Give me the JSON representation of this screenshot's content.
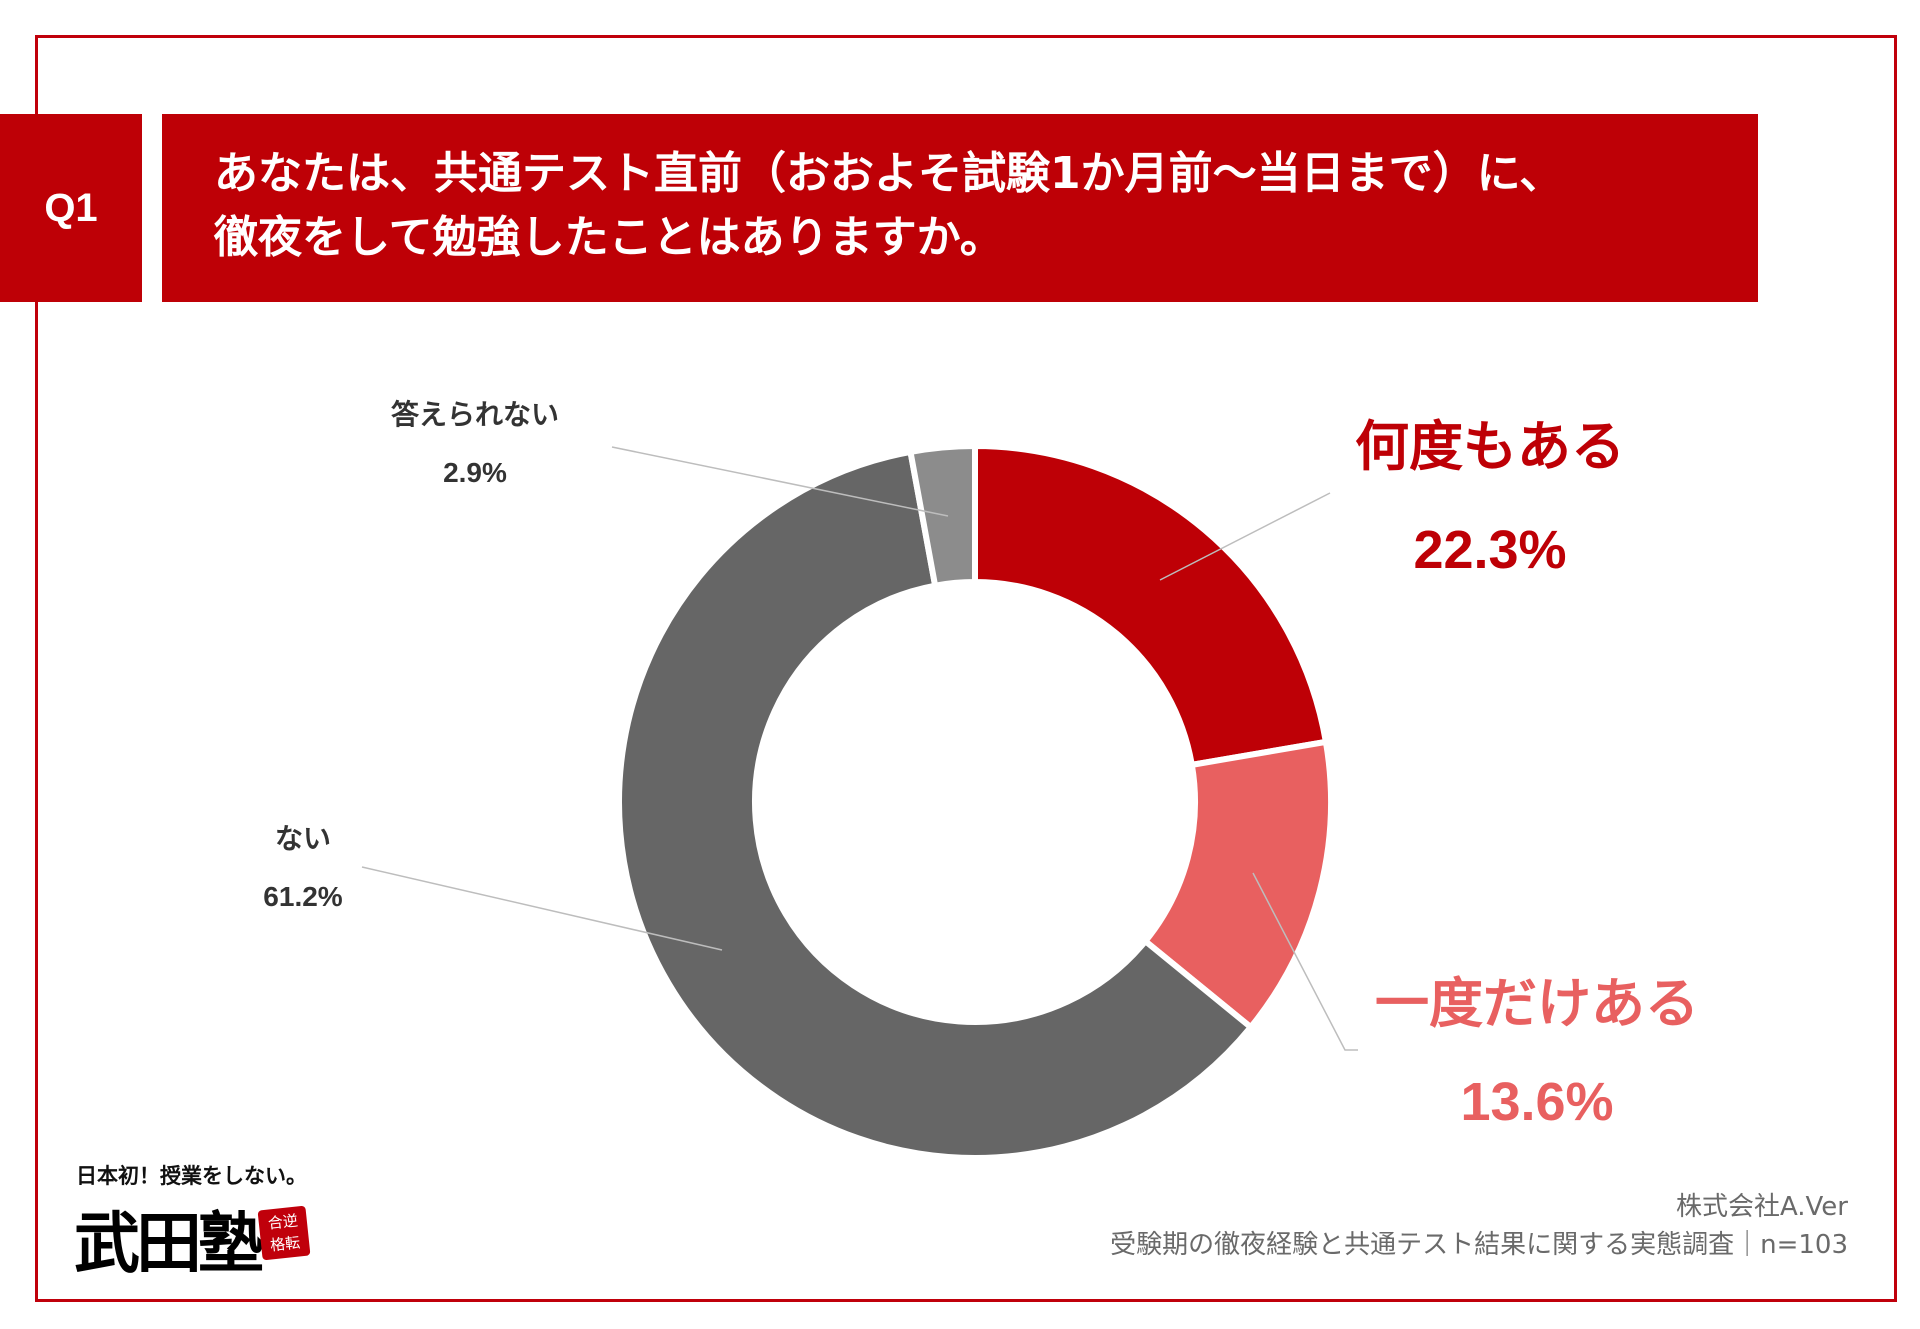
{
  "question": {
    "badge": "Q1",
    "line1": "あなたは、共通テスト直前（おおよそ試験1か月前～当日まで）に、",
    "line2": "徹夜をして勉強したことはありますか。"
  },
  "chart_data": {
    "type": "donut",
    "categories": [
      "何度もある",
      "一度だけある",
      "ない",
      "答えられない"
    ],
    "values": [
      22.3,
      13.6,
      61.2,
      2.9
    ],
    "labels": [
      "22.3%",
      "13.6%",
      "61.2%",
      "2.9%"
    ],
    "colors": [
      "#be0006",
      "#e86060",
      "#666666",
      "#8c8c8c"
    ],
    "label_colors": [
      "#be0006",
      "#e86060",
      "#333333",
      "#333333"
    ],
    "unit": "%",
    "start_angle": "12 o'clock",
    "direction": "clockwise"
  },
  "branding": {
    "tagline": "日本初！授業をしない。",
    "name": "武田塾",
    "stamp_line1": "合逆",
    "stamp_line2": "格転"
  },
  "source": {
    "company": "株式会社A.Ver",
    "survey": "受験期の徹夜経験と共通テスト結果に関する実態調査｜n=103"
  }
}
